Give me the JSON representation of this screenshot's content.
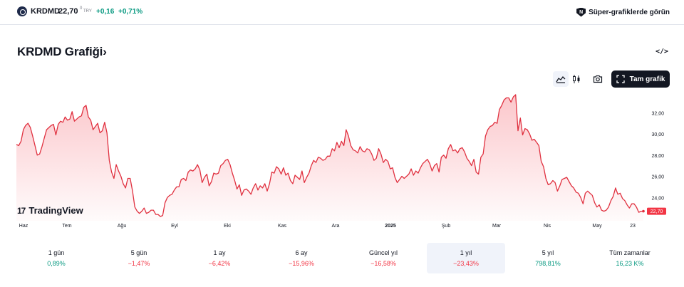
{
  "header": {
    "ticker": "KRDMD",
    "price": "22,70",
    "price_superscript": "0",
    "currency": "TRY",
    "change_abs": "+0,16",
    "change_pct": "+0,71%",
    "super_charts_label": "Süper-grafiklerde görün",
    "super_charts_badge": "N"
  },
  "title": {
    "text": "KRDMD Grafiği",
    "chevron": "›",
    "embed_symbol": "</>"
  },
  "toolbar": {
    "full_chart_label": "Tam grafik",
    "icons": [
      "area-chart-icon",
      "candles-icon",
      "camera-icon",
      "fullscreen-icon"
    ]
  },
  "watermark": {
    "logo": "17",
    "text": "TradingView"
  },
  "colors": {
    "positive": "#089981",
    "negative": "#f23645",
    "line": "#e0303f",
    "dark": "#131722"
  },
  "chart_data": {
    "type": "area",
    "x_labels": [
      "Haz",
      "Tem",
      "Ağu",
      "Eyl",
      "Eki",
      "Kas",
      "Ara",
      "2025",
      "Şub",
      "Mar",
      "Nis",
      "May",
      "23"
    ],
    "y_ticks": [
      "32,00",
      "30,00",
      "28,00",
      "26,00",
      "24,00"
    ],
    "ylim": [
      21.8,
      33.9
    ],
    "last_value_label": "22,70",
    "grid": false,
    "series": [
      {
        "values": [
          29.0,
          28.9,
          29.3,
          30.4,
          30.8,
          31.0,
          30.6,
          29.8,
          28.9,
          28.0,
          28.1,
          28.8,
          29.6,
          30.4,
          30.6,
          30.8,
          30.9,
          29.9,
          30.9,
          31.2,
          31.1,
          31.6,
          31.3,
          31.4,
          32.1,
          31.2,
          31.4,
          31.6,
          31.7,
          32.5,
          32.7,
          31.6,
          31.3,
          30.4,
          30.7,
          31.0,
          30.1,
          30.3,
          31.1,
          30.1,
          27.5,
          26.4,
          25.8,
          27.1,
          26.5,
          26.0,
          25.3,
          24.9,
          25.8,
          25.8,
          24.6,
          23.1,
          22.7,
          22.5,
          22.7,
          23.0,
          22.5,
          22.6,
          22.8,
          22.8,
          22.4,
          22.4,
          22.2,
          22.3,
          23.5,
          24.0,
          24.2,
          24.3,
          24.7,
          25.0,
          25.0,
          25.7,
          25.8,
          25.6,
          26.4,
          26.6,
          26.5,
          26.7,
          27.1,
          26.6,
          25.4,
          25.9,
          26.2,
          25.1,
          25.5,
          26.3,
          26.2,
          26.3,
          27.0,
          27.2,
          27.5,
          27.6,
          27.1,
          26.3,
          25.6,
          24.8,
          25.2,
          24.2,
          24.7,
          24.8,
          24.6,
          24.3,
          24.9,
          25.3,
          24.7,
          25.1,
          24.9,
          25.3,
          24.6,
          25.3,
          26.4,
          26.3,
          26.9,
          26.7,
          26.2,
          26.8,
          26.1,
          26.3,
          25.6,
          25.3,
          26.1,
          25.9,
          25.7,
          26.5,
          25.4,
          25.9,
          26.3,
          27.0,
          27.5,
          27.3,
          27.8,
          27.7,
          27.5,
          27.6,
          27.9,
          27.9,
          28.6,
          28.4,
          29.2,
          28.7,
          29.3,
          28.9,
          30.4,
          29.8,
          28.9,
          28.5,
          28.4,
          28.2,
          28.8,
          28.4,
          28.3,
          28.6,
          28.5,
          28.1,
          27.5,
          27.7,
          28.6,
          28.1,
          27.3,
          27.6,
          27.4,
          26.7,
          26.8,
          25.9,
          25.4,
          25.7,
          26.0,
          25.8,
          26.0,
          26.2,
          26.7,
          26.1,
          26.5,
          26.3,
          26.8,
          27.2,
          27.4,
          27.6,
          27.2,
          26.5,
          27.0,
          27.2,
          26.4,
          27.8,
          28.0,
          27.7,
          28.6,
          29.0,
          28.4,
          28.5,
          28.2,
          28.6,
          28.7,
          28.3,
          27.7,
          27.4,
          27.0,
          27.6,
          26.4,
          26.2,
          27.8,
          28.1,
          29.8,
          30.4,
          30.7,
          30.8,
          31.1,
          31.0,
          32.3,
          32.7,
          33.2,
          33.4,
          33.4,
          33.0,
          33.5,
          33.7,
          30.3,
          31.5,
          29.9,
          30.5,
          30.4,
          30.0,
          29.4,
          29.5,
          29.2,
          28.9,
          27.4,
          26.9,
          25.8,
          25.2,
          25.3,
          25.6,
          25.4,
          24.6,
          25.1,
          25.7,
          25.8,
          25.9,
          25.5,
          25.1,
          24.9,
          24.5,
          24.4,
          24.0,
          23.4,
          24.4,
          24.6,
          24.4,
          24.2,
          23.5,
          23.1,
          23.3,
          22.8,
          22.7,
          22.8,
          23.1,
          23.7,
          24.1,
          24.9,
          24.3,
          24.4,
          23.9,
          23.7,
          23.3,
          23.0,
          23.4,
          23.4,
          23.1,
          22.6,
          22.7,
          22.7
        ]
      }
    ]
  },
  "performance": [
    {
      "label": "1 gün",
      "value": "0,89%",
      "sign": "pos"
    },
    {
      "label": "5 gün",
      "value": "−1,47%",
      "sign": "neg"
    },
    {
      "label": "1 ay",
      "value": "−6,42%",
      "sign": "neg"
    },
    {
      "label": "6 ay",
      "value": "−15,96%",
      "sign": "neg"
    },
    {
      "label": "Güncel yıl",
      "value": "−16,58%",
      "sign": "neg"
    },
    {
      "label": "1 yıl",
      "value": "−23,43%",
      "sign": "neg",
      "active": true
    },
    {
      "label": "5 yıl",
      "value": "798,81%",
      "sign": "pos"
    },
    {
      "label": "Tüm zamanlar",
      "value": "16,23 K%",
      "sign": "pos"
    }
  ]
}
